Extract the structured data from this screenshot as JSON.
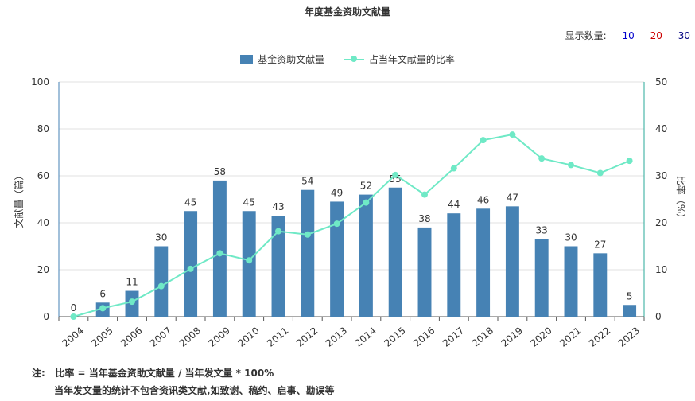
{
  "title": "年度基金资助文献量",
  "display": {
    "label": "显示数量:",
    "options": [
      "10",
      "20",
      "30"
    ],
    "colors": [
      "#0000cc",
      "#cc0000",
      "#000080"
    ]
  },
  "legend": {
    "bar_label": "基金资助文献量",
    "line_label": "占当年文献量的比率"
  },
  "colors": {
    "bar": "#4682b4",
    "line": "#6fe9c6",
    "axis_left": "#4682b4",
    "axis_right": "#2aa89a",
    "grid": "#e0e0e0"
  },
  "chart_data": {
    "type": "bar",
    "title": "年度基金资助文献量",
    "categories": [
      "2004",
      "2005",
      "2006",
      "2007",
      "2008",
      "2009",
      "2010",
      "2011",
      "2012",
      "2013",
      "2014",
      "2015",
      "2016",
      "2017",
      "2018",
      "2019",
      "2020",
      "2021",
      "2022",
      "2023"
    ],
    "series": [
      {
        "name": "基金资助文献量",
        "type": "bar",
        "axis": "left",
        "values": [
          0,
          6,
          11,
          30,
          45,
          58,
          45,
          43,
          54,
          49,
          52,
          55,
          38,
          44,
          46,
          47,
          33,
          30,
          27,
          5
        ]
      },
      {
        "name": "占当年文献量的比率",
        "type": "line",
        "axis": "right",
        "values": [
          0,
          1.8,
          3.2,
          6.5,
          10.2,
          13.5,
          12.0,
          18.2,
          17.5,
          19.8,
          24.3,
          30.2,
          26.0,
          31.6,
          37.6,
          38.8,
          33.7,
          32.3,
          30.6,
          33.2
        ]
      }
    ],
    "ylabel": "文献量（篇）",
    "y2label": "比率（%）",
    "ylim": [
      0,
      100
    ],
    "y2lim": [
      0,
      50
    ],
    "yticks": [
      0,
      20,
      40,
      60,
      80,
      100
    ],
    "y2ticks": [
      0,
      10,
      20,
      30,
      40,
      50
    ],
    "grid": true,
    "legend_position": "top"
  },
  "note": {
    "prefix": "注:",
    "line1": "比率 = 当年基金资助文献量 / 当年发文量 * 100%",
    "line2": "当年发文量的统计不包含资讯类文献,如致谢、稿约、启事、勘误等"
  }
}
